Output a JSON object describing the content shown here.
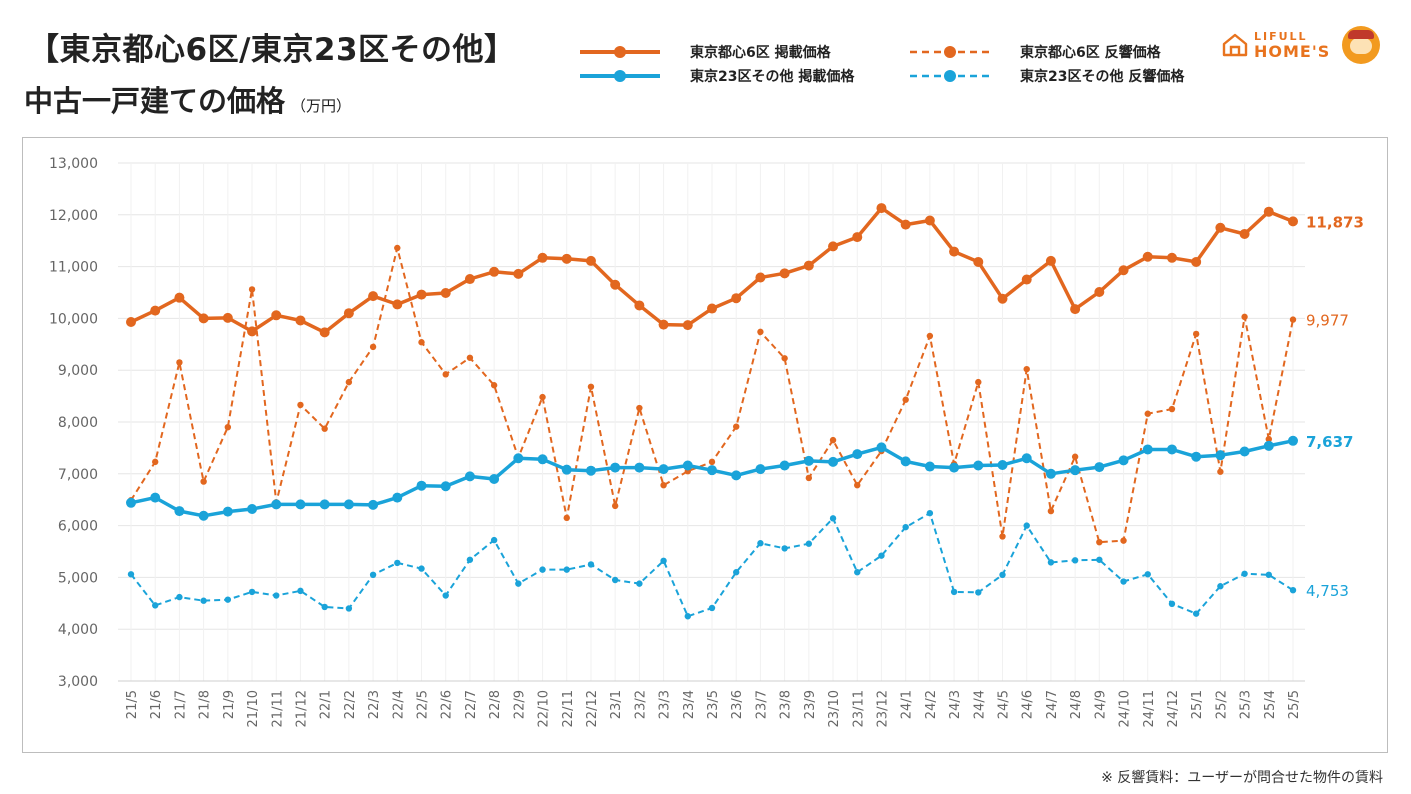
{
  "header": {
    "title_line1": "【東京都心6区/東京23区その他】",
    "title_line2": "中古一戸建ての価格",
    "unit": "（万円）"
  },
  "logo": {
    "top": "LIFULL",
    "bottom": "HOME'S"
  },
  "footnote": "※ 反響賃料：ユーザーが問合せた物件の賃料",
  "colors": {
    "orange": "#e2671f",
    "blue": "#1aa3d9",
    "grid": "#e6e6e6",
    "axis_text": "#666666"
  },
  "chart_data": {
    "type": "line",
    "categories": [
      "21/5",
      "21/6",
      "21/7",
      "21/8",
      "21/9",
      "21/10",
      "21/11",
      "21/12",
      "22/1",
      "22/2",
      "22/3",
      "22/4",
      "22/5",
      "22/6",
      "22/7",
      "22/8",
      "22/9",
      "22/10",
      "22/11",
      "22/12",
      "23/1",
      "23/2",
      "23/3",
      "23/4",
      "23/5",
      "23/6",
      "23/7",
      "23/8",
      "23/9",
      "23/10",
      "23/11",
      "23/12",
      "24/1",
      "24/2",
      "24/3",
      "24/4",
      "24/5",
      "24/6",
      "24/7",
      "24/8",
      "24/9",
      "24/10",
      "24/11",
      "24/12",
      "25/1",
      "25/2",
      "25/3",
      "25/4",
      "25/5"
    ],
    "ylim": [
      3000,
      13000
    ],
    "yticks": [
      "3,000",
      "4,000",
      "5,000",
      "6,000",
      "7,000",
      "8,000",
      "9,000",
      "10,000",
      "11,000",
      "12,000",
      "13,000"
    ],
    "grid": true,
    "legend_position": "top",
    "series": [
      {
        "name": "東京都心6区 掲載価格",
        "style": "solid",
        "color": "#e2671f",
        "end_label": "11,873",
        "values": [
          9930,
          10150,
          10400,
          10000,
          10010,
          9750,
          10060,
          9960,
          9730,
          10100,
          10430,
          10270,
          10460,
          10490,
          10760,
          10900,
          10860,
          11170,
          11150,
          11110,
          10650,
          10250,
          9880,
          9870,
          10190,
          10390,
          10790,
          10870,
          11020,
          11390,
          11570,
          12130,
          11810,
          11890,
          11290,
          11090,
          10380,
          10750,
          11110,
          10180,
          10510,
          10930,
          11190,
          11170,
          11090,
          11750,
          11630,
          12060,
          11873
        ]
      },
      {
        "name": "東京23区その他 掲載価格",
        "style": "solid",
        "color": "#1aa3d9",
        "end_label": "7,637",
        "values": [
          6440,
          6540,
          6280,
          6190,
          6270,
          6320,
          6410,
          6410,
          6410,
          6410,
          6400,
          6540,
          6770,
          6760,
          6950,
          6900,
          7300,
          7280,
          7080,
          7060,
          7120,
          7120,
          7090,
          7160,
          7070,
          6970,
          7090,
          7160,
          7250,
          7230,
          7380,
          7510,
          7240,
          7140,
          7120,
          7160,
          7170,
          7300,
          7000,
          7070,
          7130,
          7260,
          7470,
          7470,
          7330,
          7360,
          7430,
          7540,
          7637
        ]
      },
      {
        "name": "東京都心6区 反響価格",
        "style": "dashed",
        "color": "#e2671f",
        "end_label": "9,977",
        "values": [
          6490,
          7230,
          9150,
          6850,
          7900,
          10560,
          6450,
          8330,
          7870,
          8770,
          9450,
          11360,
          9540,
          8920,
          9240,
          8710,
          7310,
          8480,
          6150,
          8680,
          6380,
          8270,
          6780,
          7050,
          7230,
          7910,
          9740,
          9230,
          6920,
          7650,
          6780,
          7440,
          8430,
          9660,
          7190,
          8770,
          5790,
          9020,
          6280,
          7330,
          5680,
          5710,
          8160,
          8250,
          9700,
          7040,
          10030,
          7670,
          9977
        ]
      },
      {
        "name": "東京23区その他 反響価格",
        "style": "dashed",
        "color": "#1aa3d9",
        "end_label": "4,753",
        "values": [
          5060,
          4460,
          4620,
          4550,
          4570,
          4720,
          4650,
          4740,
          4430,
          4400,
          5050,
          5280,
          5170,
          4650,
          5340,
          5720,
          4880,
          5150,
          5150,
          5250,
          4950,
          4880,
          5320,
          4250,
          4410,
          5100,
          5660,
          5560,
          5650,
          6140,
          5100,
          5420,
          5970,
          6240,
          4720,
          4710,
          5050,
          6000,
          5290,
          5330,
          5340,
          4920,
          5060,
          4490,
          4300,
          4830,
          5070,
          5050,
          4753
        ]
      }
    ]
  }
}
